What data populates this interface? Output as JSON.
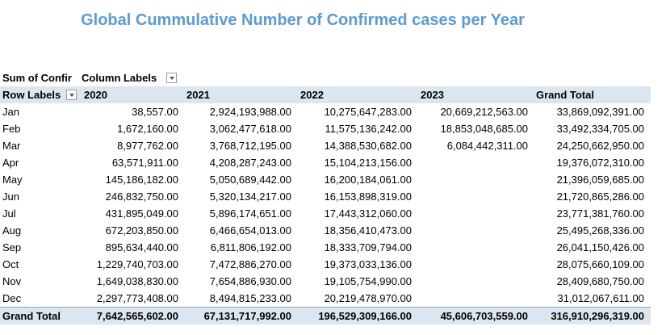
{
  "title": "Global Cummulative Number of Confirmed cases per Year",
  "pivot": {
    "corner_label": "Sum of Confir",
    "column_labels": "Column Labels",
    "row_labels": "Row Labels",
    "columns": [
      "2020",
      "2021",
      "2022",
      "2023",
      "Grand Total"
    ],
    "rows": [
      {
        "label": "Jan",
        "v2020": "38,557.00",
        "v2021": "2,924,193,988.00",
        "v2022": "10,275,647,283.00",
        "v2023": "20,669,212,563.00",
        "gt": "33,869,092,391.00"
      },
      {
        "label": "Feb",
        "v2020": "1,672,160.00",
        "v2021": "3,062,477,618.00",
        "v2022": "11,575,136,242.00",
        "v2023": "18,853,048,685.00",
        "gt": "33,492,334,705.00"
      },
      {
        "label": "Mar",
        "v2020": "8,977,762.00",
        "v2021": "3,768,712,195.00",
        "v2022": "14,388,530,682.00",
        "v2023": "6,084,442,311.00",
        "gt": "24,250,662,950.00"
      },
      {
        "label": "Apr",
        "v2020": "63,571,911.00",
        "v2021": "4,208,287,243.00",
        "v2022": "15,104,213,156.00",
        "v2023": "",
        "gt": "19,376,072,310.00"
      },
      {
        "label": "May",
        "v2020": "145,186,182.00",
        "v2021": "5,050,689,442.00",
        "v2022": "16,200,184,061.00",
        "v2023": "",
        "gt": "21,396,059,685.00"
      },
      {
        "label": "Jun",
        "v2020": "246,832,750.00",
        "v2021": "5,320,134,217.00",
        "v2022": "16,153,898,319.00",
        "v2023": "",
        "gt": "21,720,865,286.00"
      },
      {
        "label": "Jul",
        "v2020": "431,895,049.00",
        "v2021": "5,896,174,651.00",
        "v2022": "17,443,312,060.00",
        "v2023": "",
        "gt": "23,771,381,760.00"
      },
      {
        "label": "Aug",
        "v2020": "672,203,850.00",
        "v2021": "6,466,654,013.00",
        "v2022": "18,356,410,473.00",
        "v2023": "",
        "gt": "25,495,268,336.00"
      },
      {
        "label": "Sep",
        "v2020": "895,634,440.00",
        "v2021": "6,811,806,192.00",
        "v2022": "18,333,709,794.00",
        "v2023": "",
        "gt": "26,041,150,426.00"
      },
      {
        "label": "Oct",
        "v2020": "1,229,740,703.00",
        "v2021": "7,472,886,270.00",
        "v2022": "19,373,033,136.00",
        "v2023": "",
        "gt": "28,075,660,109.00"
      },
      {
        "label": "Nov",
        "v2020": "1,649,038,830.00",
        "v2021": "7,654,886,930.00",
        "v2022": "19,105,754,990.00",
        "v2023": "",
        "gt": "28,409,680,750.00"
      },
      {
        "label": "Dec",
        "v2020": "2,297,773,408.00",
        "v2021": "8,494,815,233.00",
        "v2022": "20,219,478,970.00",
        "v2023": "",
        "gt": "31,012,067,611.00"
      }
    ],
    "total": {
      "label": "Grand Total",
      "v2020": "7,642,565,602.00",
      "v2021": "67,131,717,992.00",
      "v2022": "196,529,309,166.00",
      "v2023": "45,606,703,559.00",
      "gt": "316,910,296,319.00"
    }
  }
}
